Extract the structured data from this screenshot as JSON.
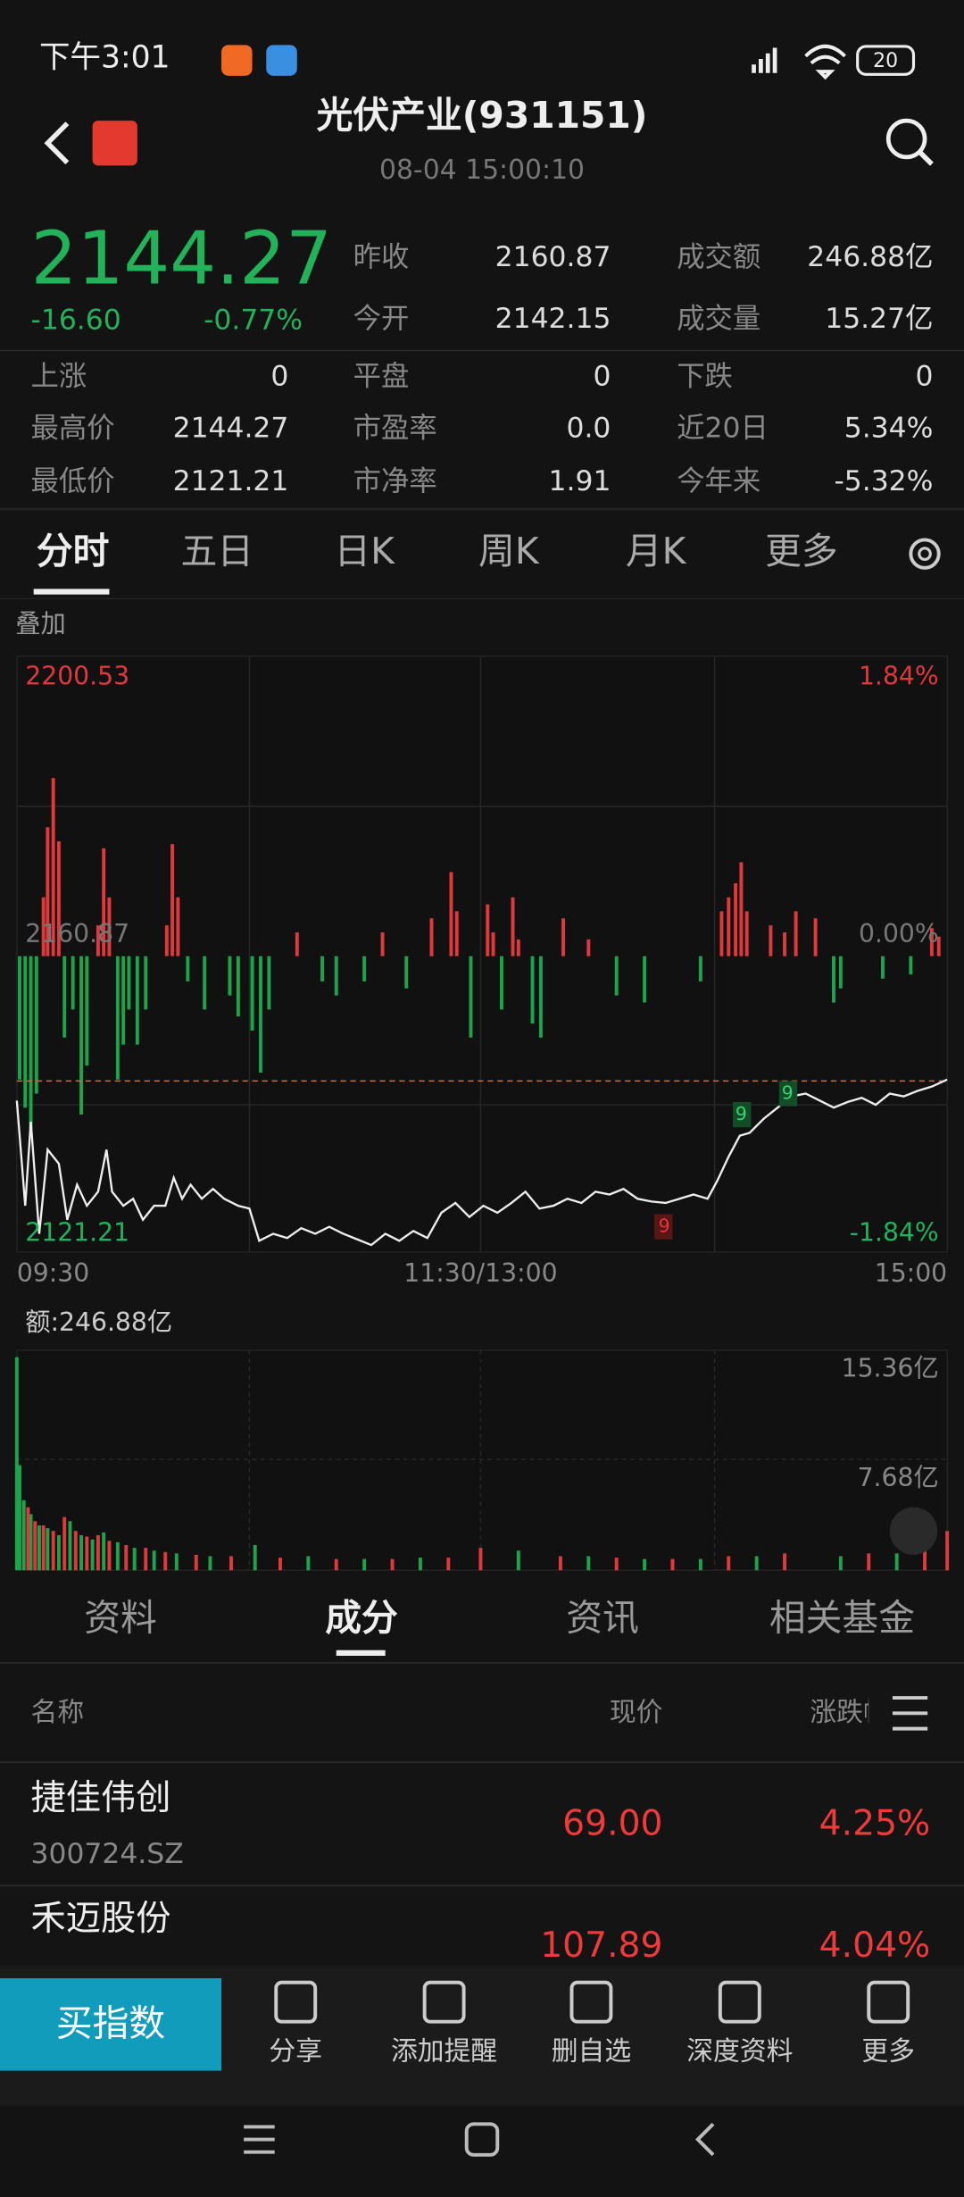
{
  "status_bar": {
    "time": "下午3:01",
    "battery": "20"
  },
  "header": {
    "title": "光伏产业(931151)",
    "datetime": "08-04 15:00:10"
  },
  "quote": {
    "price": "2144.27",
    "change": "-16.60",
    "change_pct": "-0.77%",
    "top_stats": [
      {
        "label": "昨收",
        "value": "2160.87"
      },
      {
        "label": "成交额",
        "value": "246.88亿"
      },
      {
        "label": "今开",
        "value": "2142.15"
      },
      {
        "label": "成交量",
        "value": "15.27亿"
      }
    ],
    "stats": [
      {
        "label": "上涨",
        "value": "0"
      },
      {
        "label": "平盘",
        "value": "0"
      },
      {
        "label": "下跌",
        "value": "0"
      },
      {
        "label": "最高价",
        "value": "2144.27"
      },
      {
        "label": "市盈率",
        "value": "0.0"
      },
      {
        "label": "近20日",
        "value": "5.34%"
      },
      {
        "label": "最低价",
        "value": "2121.21"
      },
      {
        "label": "市净率",
        "value": "1.91"
      },
      {
        "label": "今年来",
        "value": "-5.32%"
      }
    ]
  },
  "chart_tabs": [
    "分时",
    "五日",
    "日K",
    "周K",
    "月K",
    "更多"
  ],
  "chart": {
    "overlay": "叠加",
    "high": "2200.53",
    "high_pct": "1.84%",
    "base": "2160.87",
    "base_pct": "0.00%",
    "low": "2121.21",
    "low_pct": "-1.84%",
    "times": [
      "09:30",
      "11:30/13:00",
      "15:00"
    ],
    "marker_9a": "9",
    "marker_9b": "9",
    "marker_9c": "9",
    "amount": "额:246.88亿",
    "vol_max": "15.36亿",
    "vol_mid": "7.68亿"
  },
  "info_tabs": [
    "资料",
    "成分",
    "资讯",
    "相关基金"
  ],
  "table": {
    "headers": [
      "名称",
      "现价",
      "涨跌幅"
    ],
    "rows": [
      {
        "name": "捷佳伟创",
        "code": "300724.SZ",
        "price": "69.00",
        "pct": "4.25%"
      },
      {
        "name": "禾迈股份",
        "price": "107.89",
        "pct": "4.04%"
      }
    ]
  },
  "bottom_bar": {
    "buy": "买指数",
    "actions": [
      "分享",
      "添加提醒",
      "删自选",
      "深度资料",
      "更多"
    ]
  }
}
